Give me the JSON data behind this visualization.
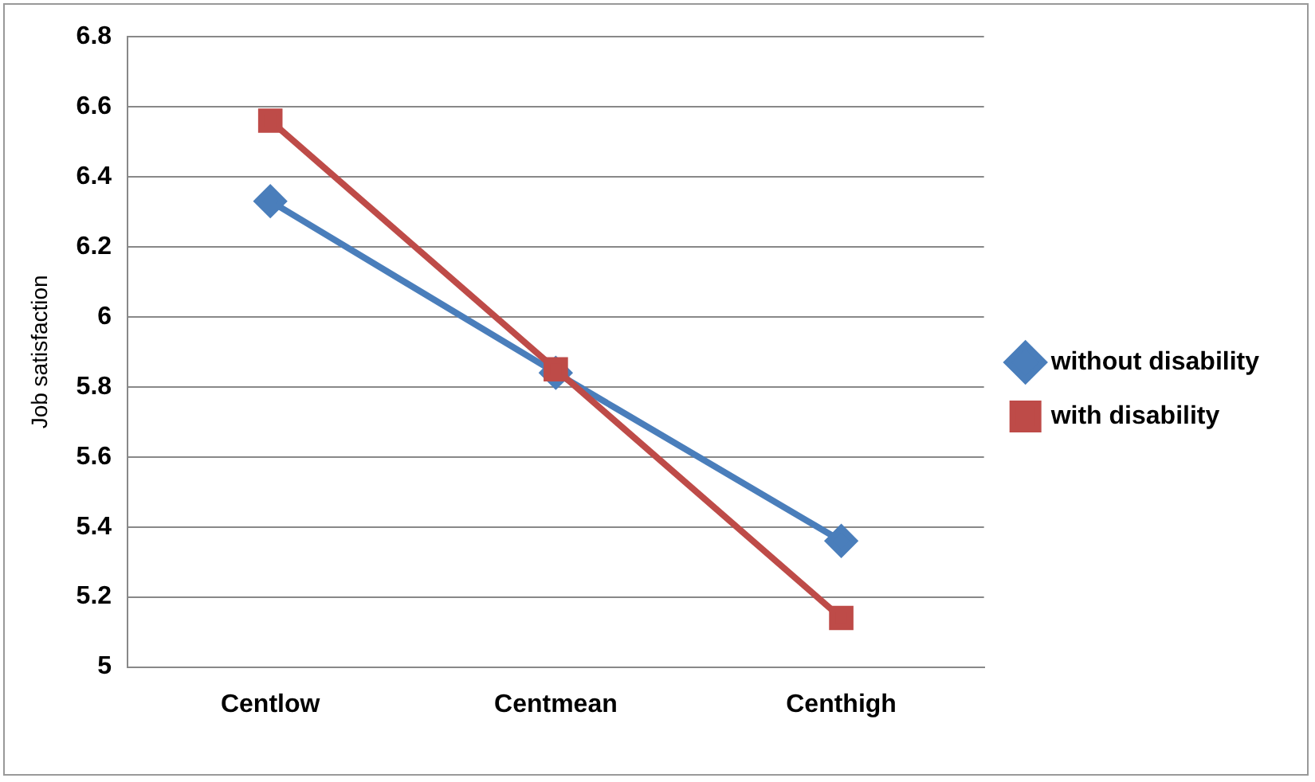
{
  "chart_data": {
    "type": "line",
    "ylabel": "Job satisfaction",
    "categories": [
      "Centlow",
      "Centmean",
      "Centhigh"
    ],
    "series": [
      {
        "name": "without disability",
        "color": "#4a7ebb",
        "marker": "diamond",
        "values": [
          6.33,
          5.84,
          5.36
        ]
      },
      {
        "name": "with disability",
        "color": "#be4b48",
        "marker": "square",
        "values": [
          6.56,
          5.85,
          5.14
        ]
      }
    ],
    "ylim": [
      5,
      6.8
    ],
    "yticks": [
      5,
      5.2,
      5.4,
      5.6,
      5.8,
      6,
      6.2,
      6.4,
      6.6,
      6.8
    ],
    "grid": "y",
    "legend": "right"
  }
}
